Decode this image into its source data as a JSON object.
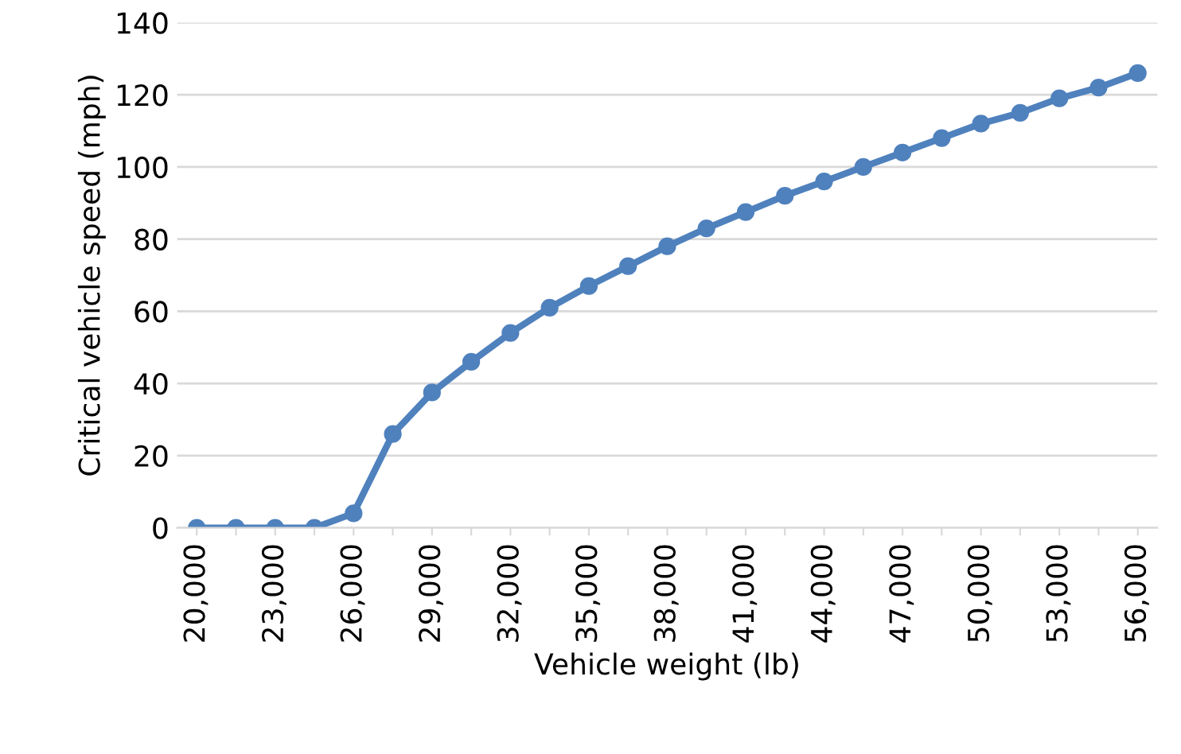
{
  "chart_data": {
    "type": "line",
    "xlabel": "Vehicle weight (lb)",
    "ylabel": "Critical vehicle speed (mph)",
    "categories": [
      "20,000",
      null,
      "23,000",
      null,
      "26,000",
      null,
      "29,000",
      null,
      "32,000",
      null,
      "35,000",
      null,
      "38,000",
      null,
      "41,000",
      null,
      "44,000",
      null,
      "47,000",
      null,
      "50,000",
      null,
      "53,000",
      null,
      "56,000"
    ],
    "series": [
      {
        "color": "#4f81bd",
        "values": [
          0,
          0,
          0,
          0,
          4,
          26,
          37.5,
          46,
          54,
          61,
          67,
          72.5,
          78,
          83,
          87.5,
          92,
          96,
          100,
          104,
          108,
          112,
          115,
          119,
          122,
          126
        ]
      }
    ],
    "ylim": [
      0,
      140
    ],
    "yticks": [
      0,
      20,
      40,
      60,
      80,
      100,
      120,
      140
    ],
    "grid": "y",
    "marker": "circle",
    "line_style": "solid",
    "legend": false
  }
}
